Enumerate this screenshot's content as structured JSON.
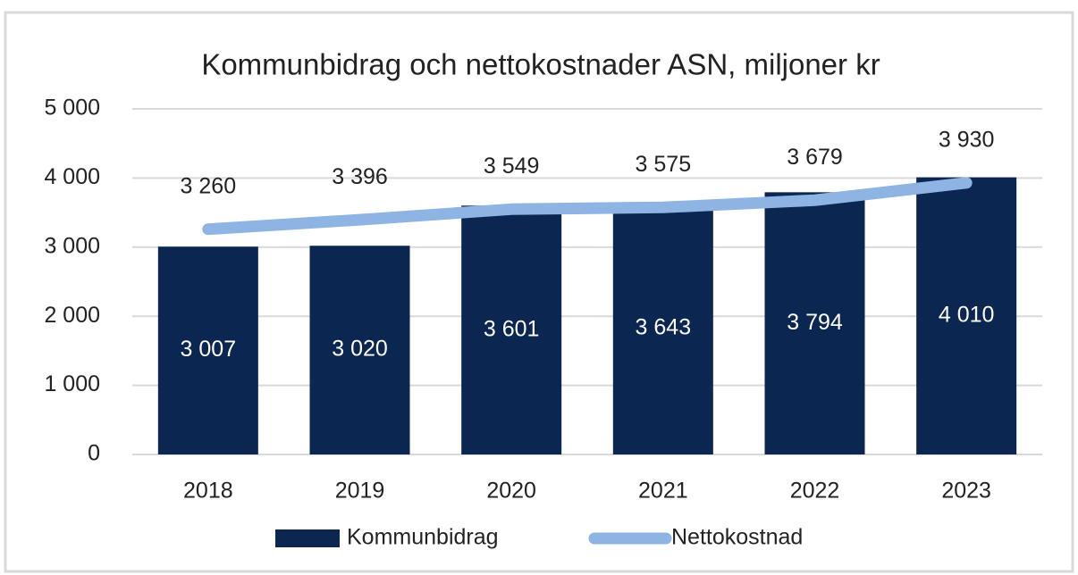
{
  "chart_data": {
    "type": "bar",
    "title": "Kommunbidrag och nettokostnader ASN, miljoner kr",
    "categories": [
      "2018",
      "2019",
      "2020",
      "2021",
      "2022",
      "2023"
    ],
    "series": [
      {
        "name": "Kommunbidrag",
        "type": "bar",
        "color": "#0b2651",
        "values": [
          3007,
          3020,
          3601,
          3643,
          3794,
          4010
        ],
        "value_labels": [
          "3 007",
          "3 020",
          "3 601",
          "3 643",
          "3 794",
          "4 010"
        ]
      },
      {
        "name": "Nettokostnad",
        "type": "line",
        "color": "#8db4e2",
        "values": [
          3260,
          3396,
          3549,
          3575,
          3679,
          3930
        ],
        "value_labels": [
          "3 260",
          "3 396",
          "3 549",
          "3 575",
          "3 679",
          "3 930"
        ]
      }
    ],
    "ylim": [
      0,
      5000
    ],
    "yticks": [
      0,
      {
        "value": 1000,
        "label": "1 000"
      },
      {
        "value": 2000,
        "label": "2 000"
      },
      {
        "value": 3000,
        "label": "3 000"
      },
      {
        "value": 4000,
        "label": "4 000"
      },
      {
        "value": 5000,
        "label": "5 000"
      }
    ],
    "grid": true,
    "legend": "bottom"
  }
}
